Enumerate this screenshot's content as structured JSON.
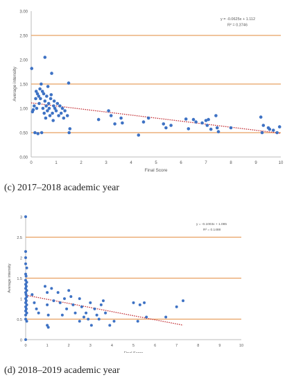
{
  "chart_data": [
    {
      "type": "scatter",
      "caption": "(c)   2017–2018 academic year",
      "xlabel": "Final Score",
      "ylabel": "Average intensity",
      "xlim": [
        0,
        10
      ],
      "ylim": [
        0,
        3
      ],
      "x_ticks": [
        "0",
        "1",
        "2",
        "3",
        "4",
        "5",
        "6",
        "7",
        "8",
        "9",
        "10"
      ],
      "y_ticks": [
        "0.00",
        "0.50",
        "1.00",
        "1.50",
        "2.00",
        "2.50",
        "3.00"
      ],
      "reference_lines": [
        0.5,
        1.5,
        2.5
      ],
      "reference_line_color": "#e8a060",
      "point_color": "#3e72c4",
      "trend_color": "#c0272d",
      "trendline": {
        "slope": -0.0625,
        "intercept": 1.112,
        "x_range": [
          0,
          10
        ]
      },
      "equation": "y = -0.0625x + 1.112",
      "r2": "R² = 0.3746",
      "legend_position": "top-right",
      "grid": false,
      "points": [
        [
          0.02,
          1.82
        ],
        [
          0.05,
          0.93
        ],
        [
          0.08,
          0.97
        ],
        [
          0.12,
          1.05
        ],
        [
          0.15,
          0.5
        ],
        [
          0.18,
          1.2
        ],
        [
          0.2,
          1.35
        ],
        [
          0.22,
          1.0
        ],
        [
          0.25,
          1.3
        ],
        [
          0.27,
          0.48
        ],
        [
          0.3,
          1.25
        ],
        [
          0.32,
          1.1
        ],
        [
          0.35,
          1.4
        ],
        [
          0.37,
          1.2
        ],
        [
          0.4,
          1.5
        ],
        [
          0.42,
          0.5
        ],
        [
          0.45,
          1.35
        ],
        [
          0.47,
          1.0
        ],
        [
          0.5,
          1.3
        ],
        [
          0.52,
          0.9
        ],
        [
          0.55,
          2.05
        ],
        [
          0.55,
          1.15
        ],
        [
          0.58,
          0.8
        ],
        [
          0.6,
          1.05
        ],
        [
          0.62,
          1.25
        ],
        [
          0.65,
          0.95
        ],
        [
          0.67,
          1.45
        ],
        [
          0.7,
          1.1
        ],
        [
          0.72,
          1.0
        ],
        [
          0.75,
          0.85
        ],
        [
          0.78,
          1.2
        ],
        [
          0.8,
          1.28
        ],
        [
          0.82,
          1.72
        ],
        [
          0.85,
          0.9
        ],
        [
          0.88,
          0.75
        ],
        [
          0.9,
          1.05
        ],
        [
          0.92,
          1.15
        ],
        [
          0.95,
          1.0
        ],
        [
          1.0,
          0.95
        ],
        [
          1.05,
          1.1
        ],
        [
          1.1,
          0.85
        ],
        [
          1.15,
          1.05
        ],
        [
          1.2,
          0.9
        ],
        [
          1.25,
          1.0
        ],
        [
          1.3,
          0.8
        ],
        [
          1.35,
          0.95
        ],
        [
          1.45,
          0.85
        ],
        [
          1.5,
          1.52
        ],
        [
          1.52,
          0.5
        ],
        [
          1.55,
          0.58
        ],
        [
          2.7,
          0.77
        ],
        [
          3.1,
          0.95
        ],
        [
          3.2,
          0.85
        ],
        [
          3.35,
          0.68
        ],
        [
          3.6,
          0.8
        ],
        [
          3.65,
          0.7
        ],
        [
          4.3,
          0.45
        ],
        [
          4.5,
          0.72
        ],
        [
          4.7,
          0.8
        ],
        [
          5.3,
          0.68
        ],
        [
          5.4,
          0.6
        ],
        [
          5.6,
          0.65
        ],
        [
          6.2,
          0.78
        ],
        [
          6.3,
          0.58
        ],
        [
          6.5,
          0.77
        ],
        [
          6.6,
          0.72
        ],
        [
          6.85,
          0.7
        ],
        [
          7.0,
          0.75
        ],
        [
          7.05,
          0.65
        ],
        [
          7.1,
          0.77
        ],
        [
          7.2,
          0.57
        ],
        [
          7.4,
          0.85
        ],
        [
          7.45,
          0.6
        ],
        [
          7.5,
          0.52
        ],
        [
          8.0,
          0.6
        ],
        [
          9.2,
          0.82
        ],
        [
          9.25,
          0.5
        ],
        [
          9.3,
          0.65
        ],
        [
          9.5,
          0.6
        ],
        [
          9.55,
          0.57
        ],
        [
          9.7,
          0.55
        ],
        [
          9.85,
          0.5
        ],
        [
          9.95,
          0.62
        ]
      ]
    },
    {
      "type": "scatter",
      "caption": "(d)   2018–2019 academic year",
      "xlabel": "Final Score",
      "ylabel": "Average intensity",
      "xlim": [
        0,
        10
      ],
      "ylim": [
        0,
        3
      ],
      "x_ticks": [
        "0",
        "1",
        "2",
        "3",
        "4",
        "5",
        "6",
        "7",
        "8",
        "9",
        "10"
      ],
      "y_ticks": [
        "0",
        "0.5",
        "1",
        "1.5",
        "2",
        "2.5",
        "3"
      ],
      "reference_lines": [
        0.5,
        1.5,
        2.5
      ],
      "reference_line_color": "#e8a060",
      "point_color": "#3e72c4",
      "trend_color": "#c0272d",
      "trendline": {
        "slope": -0.1003,
        "intercept": 1.085,
        "x_range": [
          0,
          7.3
        ]
      },
      "equation": "y = -0.1003x + 1.085",
      "r2": "R² = 0.1488",
      "legend_position": "top-right",
      "grid": false,
      "points": [
        [
          0.0,
          3.0
        ],
        [
          0.0,
          2.15
        ],
        [
          0.0,
          2.0
        ],
        [
          0.0,
          1.85
        ],
        [
          0.05,
          1.75
        ],
        [
          0.0,
          1.6
        ],
        [
          0.02,
          1.55
        ],
        [
          0.0,
          1.45
        ],
        [
          0.05,
          1.4
        ],
        [
          0.0,
          1.35
        ],
        [
          0.03,
          1.3
        ],
        [
          0.0,
          1.25
        ],
        [
          0.05,
          1.2
        ],
        [
          0.0,
          1.15
        ],
        [
          0.02,
          1.1
        ],
        [
          0.05,
          1.05
        ],
        [
          0.0,
          1.0
        ],
        [
          0.03,
          0.95
        ],
        [
          0.0,
          0.9
        ],
        [
          0.05,
          0.85
        ],
        [
          0.0,
          0.8
        ],
        [
          0.03,
          0.75
        ],
        [
          0.0,
          0.7
        ],
        [
          0.05,
          0.65
        ],
        [
          0.0,
          0.6
        ],
        [
          0.0,
          0.5
        ],
        [
          0.05,
          0.45
        ],
        [
          0.0,
          0.0
        ],
        [
          0.3,
          1.1
        ],
        [
          0.4,
          0.9
        ],
        [
          0.5,
          0.75
        ],
        [
          0.6,
          0.65
        ],
        [
          0.9,
          1.3
        ],
        [
          1.0,
          1.15
        ],
        [
          1.0,
          0.85
        ],
        [
          1.05,
          0.6
        ],
        [
          1.0,
          0.35
        ],
        [
          1.05,
          0.3
        ],
        [
          1.2,
          1.25
        ],
        [
          1.3,
          0.95
        ],
        [
          1.5,
          1.15
        ],
        [
          1.6,
          0.9
        ],
        [
          1.7,
          0.6
        ],
        [
          1.8,
          1.0
        ],
        [
          1.9,
          0.75
        ],
        [
          2.0,
          1.2
        ],
        [
          2.1,
          1.05
        ],
        [
          2.2,
          0.85
        ],
        [
          2.3,
          0.65
        ],
        [
          2.5,
          1.0
        ],
        [
          2.5,
          0.45
        ],
        [
          2.6,
          0.8
        ],
        [
          2.7,
          0.55
        ],
        [
          2.8,
          0.65
        ],
        [
          2.9,
          0.5
        ],
        [
          3.0,
          0.9
        ],
        [
          3.05,
          0.35
        ],
        [
          3.2,
          0.75
        ],
        [
          3.3,
          0.6
        ],
        [
          3.4,
          0.5
        ],
        [
          3.5,
          0.85
        ],
        [
          3.6,
          0.95
        ],
        [
          3.7,
          0.65
        ],
        [
          3.9,
          0.35
        ],
        [
          4.1,
          0.45
        ],
        [
          5.0,
          0.9
        ],
        [
          5.2,
          0.45
        ],
        [
          5.3,
          0.85
        ],
        [
          5.5,
          0.9
        ],
        [
          5.6,
          0.55
        ],
        [
          6.5,
          0.55
        ],
        [
          7.0,
          0.8
        ],
        [
          7.3,
          0.95
        ]
      ]
    }
  ]
}
